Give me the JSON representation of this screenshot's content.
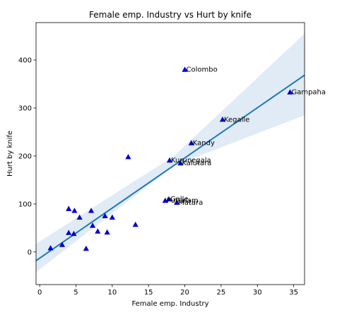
{
  "chart_data": {
    "type": "scatter",
    "title": "Female emp. Industry vs Hurt by knife",
    "xlabel": "Female emp. Industry",
    "ylabel": "Hurt by knife",
    "xlim": [
      -0.5,
      36.5
    ],
    "ylim": [
      -68,
      478
    ],
    "xticks": [
      0,
      5,
      10,
      15,
      20,
      25,
      30,
      35
    ],
    "yticks": [
      0,
      100,
      200,
      300,
      400
    ],
    "grid": false,
    "marker": "triangle",
    "marker_color": "#0000cc",
    "line_color": "#1f77b4",
    "band_color": "#c6dbef",
    "regression": {
      "slope": 10.45,
      "intercept": -13
    },
    "ci_upper": [
      [
        -0.5,
        17
      ],
      [
        18.5,
        200
      ],
      [
        36.5,
        455
      ]
    ],
    "ci_lower": [
      [
        -0.5,
        -42
      ],
      [
        18.5,
        180
      ],
      [
        36.5,
        285
      ]
    ],
    "points": [
      {
        "x": 1.5,
        "y": 8
      },
      {
        "x": 3.1,
        "y": 15
      },
      {
        "x": 4.0,
        "y": 40
      },
      {
        "x": 4.7,
        "y": 38
      },
      {
        "x": 4.0,
        "y": 90
      },
      {
        "x": 4.8,
        "y": 86
      },
      {
        "x": 5.5,
        "y": 72
      },
      {
        "x": 6.4,
        "y": 7
      },
      {
        "x": 7.1,
        "y": 86
      },
      {
        "x": 7.3,
        "y": 55
      },
      {
        "x": 8.0,
        "y": 43
      },
      {
        "x": 9.0,
        "y": 75
      },
      {
        "x": 9.3,
        "y": 41
      },
      {
        "x": 10.0,
        "y": 72
      },
      {
        "x": 12.2,
        "y": 198
      },
      {
        "x": 13.2,
        "y": 57
      },
      {
        "x": 17.3,
        "y": 107
      },
      {
        "x": 17.8,
        "y": 110
      },
      {
        "x": 18.9,
        "y": 103
      },
      {
        "x": 17.9,
        "y": 191
      },
      {
        "x": 19.4,
        "y": 185
      },
      {
        "x": 20.0,
        "y": 380
      },
      {
        "x": 20.9,
        "y": 227
      },
      {
        "x": 25.2,
        "y": 276
      },
      {
        "x": 34.5,
        "y": 333
      }
    ],
    "annotations": [
      {
        "text": "Colombo",
        "x": 20.0,
        "y": 380
      },
      {
        "text": "Gampaha",
        "x": 34.5,
        "y": 333
      },
      {
        "text": "Kegalle",
        "x": 25.2,
        "y": 276
      },
      {
        "text": "Kandy",
        "x": 20.9,
        "y": 227
      },
      {
        "text": "Kurunegala",
        "x": 17.9,
        "y": 191
      },
      {
        "text": "Kalutara",
        "x": 19.4,
        "y": 185
      },
      {
        "text": "Galle",
        "x": 17.8,
        "y": 110
      },
      {
        "text": "Puttalam",
        "x": 17.3,
        "y": 107
      },
      {
        "text": "Matara",
        "x": 18.9,
        "y": 103
      }
    ]
  }
}
